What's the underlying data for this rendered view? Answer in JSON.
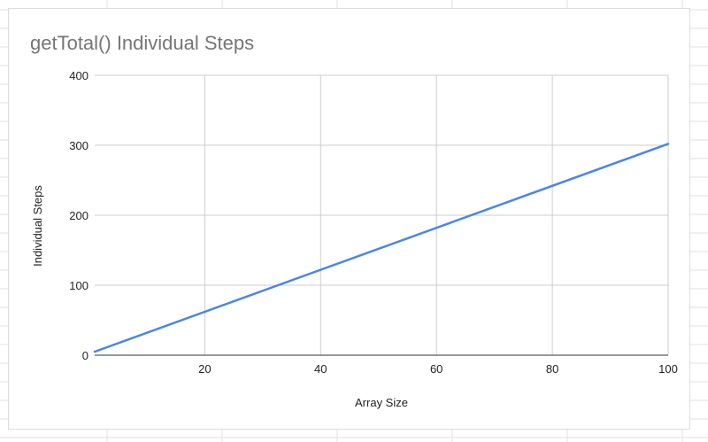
{
  "colors": {
    "series": "#4a86e8",
    "sheet_grid": "#e2e2e2",
    "chart_border": "#dadce0",
    "title": "#757575"
  },
  "chart_data": {
    "type": "line",
    "title": "getTotal() Individual Steps",
    "xlabel": "Array Size",
    "ylabel": "Individual Steps",
    "xlim": [
      1,
      100
    ],
    "ylim": [
      0,
      400
    ],
    "x_ticks": [
      20,
      40,
      60,
      80,
      100
    ],
    "y_ticks": [
      0,
      100,
      200,
      300,
      400
    ],
    "grid": true,
    "legend": "none",
    "series": [
      {
        "x": [
          1,
          100
        ],
        "values": [
          5,
          302
        ]
      }
    ]
  }
}
